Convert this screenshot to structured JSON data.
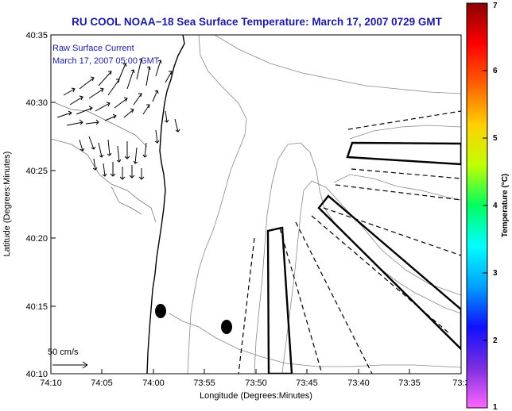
{
  "chart_data": {
    "type": "map",
    "title": "RU COOL  NOAA−18  Sea Surface Temperature:  March 17, 2007 0729 GMT",
    "xlabel": "Longitude (Degrees:Minutes)",
    "ylabel": "Latitude (Degrees:Minutes)",
    "x_ticks": [
      "74:10",
      "74:05",
      "74:00",
      "73:55",
      "73:50",
      "73:45",
      "73:40",
      "73:35",
      "73:3"
    ],
    "y_ticks": [
      "40:10",
      "40:15",
      "40:20",
      "40:25",
      "40:30",
      "40:35"
    ],
    "annotation": [
      "Raw Surface Current",
      "March 17, 2007 05:00 GMT"
    ],
    "scale_label": "50 cm/s",
    "colorbar": {
      "label": "Temperature (°C)",
      "range": [
        1,
        7
      ],
      "ticks": [
        "1",
        "2",
        "3",
        "4",
        "5",
        "6",
        "7"
      ],
      "colors": [
        "#ff66ff",
        "#7a2ee0",
        "#1010ff",
        "#00a0ff",
        "#00ffff",
        "#00ff60",
        "#c0ff00",
        "#ffd000",
        "#ff6000",
        "#ff0000",
        "#8a0000"
      ]
    },
    "grid": false
  }
}
